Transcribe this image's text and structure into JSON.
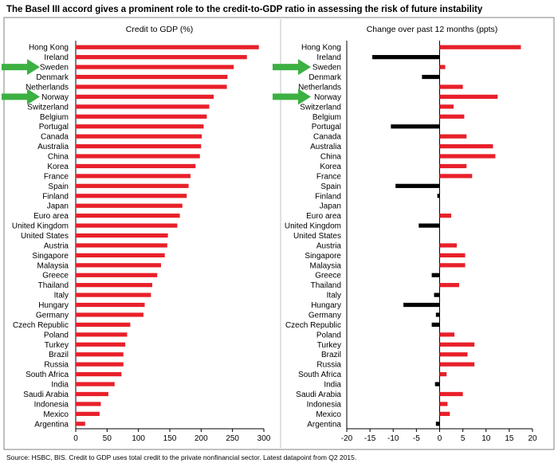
{
  "title": "The Basel III accord gives a prominent role to the credit-to-GDP ratio in assessing the risk of future instability",
  "source": "Source: HSBC, BIS. Credit to GDP uses total credit to the private nonfinancial sector. Latest datapoint from Q2 2015.",
  "colors": {
    "positive": "#e8202a",
    "negative": "#000000",
    "arrow": "#3cb043",
    "frame": "#808080",
    "divider": "#c0c0c0"
  },
  "highlighted": [
    "Sweden",
    "Norway"
  ],
  "chart_data": [
    {
      "type": "bar",
      "orientation": "horizontal",
      "title": "Credit to GDP (%)",
      "xlim": [
        0,
        300
      ],
      "xticks": [
        "0",
        "50",
        "100",
        "150",
        "200",
        "250",
        "300"
      ],
      "grid": false,
      "categories": [
        "Hong Kong",
        "Ireland",
        "Sweden",
        "Denmark",
        "Netherlands",
        "Norway",
        "Switzerland",
        "Belgium",
        "Portugal",
        "Canada",
        "Australia",
        "China",
        "Korea",
        "France",
        "Spain",
        "Finland",
        "Japan",
        "Euro area",
        "United Kingdom",
        "United States",
        "Austria",
        "Singapore",
        "Malaysia",
        "Greece",
        "Thailand",
        "Italy",
        "Hungary",
        "Germany",
        "Czech Republic",
        "Poland",
        "Turkey",
        "Brazil",
        "Russia",
        "South Africa",
        "India",
        "Saudi Arabia",
        "Indonesia",
        "Mexico",
        "Argentina"
      ],
      "values": [
        292,
        273,
        252,
        242,
        241,
        220,
        213,
        209,
        204,
        201,
        200,
        198,
        191,
        183,
        180,
        177,
        170,
        166,
        162,
        147,
        146,
        142,
        136,
        130,
        122,
        120,
        110,
        108,
        87,
        82,
        79,
        76,
        76,
        73,
        62,
        52,
        40,
        38,
        15
      ]
    },
    {
      "type": "bar",
      "orientation": "horizontal",
      "title": "Change over past 12 months (ppts)",
      "xlim": [
        -20,
        20
      ],
      "xticks": [
        "-20",
        "-15",
        "-10",
        "-5",
        "0",
        "5",
        "10",
        "15",
        "20"
      ],
      "grid": false,
      "categories": [
        "Hong Kong",
        "Ireland",
        "Sweden",
        "Denmark",
        "Netherlands",
        "Norway",
        "Switzerland",
        "Belgium",
        "Portugal",
        "Canada",
        "Australia",
        "China",
        "Korea",
        "France",
        "Spain",
        "Finland",
        "Japan",
        "Euro area",
        "United Kingdom",
        "United States",
        "Austria",
        "Singapore",
        "Malaysia",
        "Greece",
        "Thailand",
        "Italy",
        "Hungary",
        "Germany",
        "Czech Republic",
        "Poland",
        "Turkey",
        "Brazil",
        "Russia",
        "South Africa",
        "India",
        "Saudi Arabia",
        "Indonesia",
        "Mexico",
        "Argentina"
      ],
      "values": [
        17.5,
        -14.5,
        1.2,
        -3.8,
        5.0,
        12.5,
        3.0,
        5.3,
        -10.5,
        5.8,
        11.5,
        12.0,
        5.8,
        7.0,
        -9.5,
        -0.5,
        0,
        2.5,
        -4.5,
        0,
        3.7,
        5.5,
        5.5,
        -1.7,
        4.2,
        -1.2,
        -7.8,
        -0.8,
        -1.7,
        3.2,
        7.5,
        6.0,
        7.5,
        1.5,
        -1.0,
        5.0,
        1.7,
        2.2,
        -0.8
      ]
    }
  ]
}
